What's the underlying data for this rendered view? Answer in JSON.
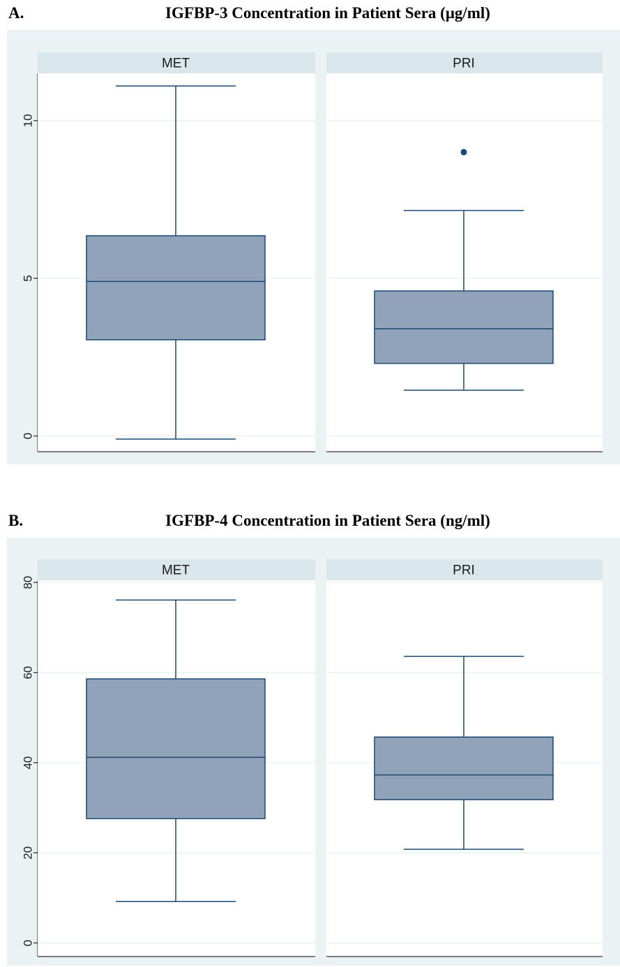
{
  "panels": [
    {
      "letter": "A.",
      "title": "IGFBP-3 Concentration in Patient Sera (μg/ml)"
    },
    {
      "letter": "B.",
      "title": "IGFBP-4 Concentration in Patient Sera (ng/ml)"
    }
  ],
  "colors": {
    "outer_background": "#eaf2f3",
    "strip": "#d9e6eb",
    "box_fill": "#90a3ba",
    "box_stroke": "#1a476f",
    "grid": "#eaf2f3"
  },
  "chart_data": [
    {
      "type": "box",
      "title": "IGFBP-3 Concentration in Patient Sera (μg/ml)",
      "facets": [
        "MET",
        "PRI"
      ],
      "y_ticks": [
        0,
        5,
        10
      ],
      "ylim": [
        -0.5,
        11.5
      ],
      "grid": true,
      "series": [
        {
          "name": "MET",
          "whisker_low": -0.1,
          "q1": 3.05,
          "median": 4.9,
          "q3": 6.35,
          "whisker_high": 11.1,
          "outliers": []
        },
        {
          "name": "PRI",
          "whisker_low": 1.45,
          "q1": 2.3,
          "median": 3.4,
          "q3": 4.6,
          "whisker_high": 7.15,
          "outliers": [
            9.0
          ]
        }
      ]
    },
    {
      "type": "box",
      "title": "IGFBP-4 Concentration in Patient Sera (ng/ml)",
      "facets": [
        "MET",
        "PRI"
      ],
      "y_ticks": [
        0,
        20,
        40,
        60,
        80
      ],
      "ylim": [
        -3,
        80.5
      ],
      "grid": true,
      "series": [
        {
          "name": "MET",
          "whisker_low": 9.2,
          "q1": 27.6,
          "median": 41.2,
          "q3": 58.6,
          "whisker_high": 76.1,
          "outliers": []
        },
        {
          "name": "PRI",
          "whisker_low": 20.8,
          "q1": 31.8,
          "median": 37.3,
          "q3": 45.7,
          "whisker_high": 63.6,
          "outliers": []
        }
      ]
    }
  ]
}
